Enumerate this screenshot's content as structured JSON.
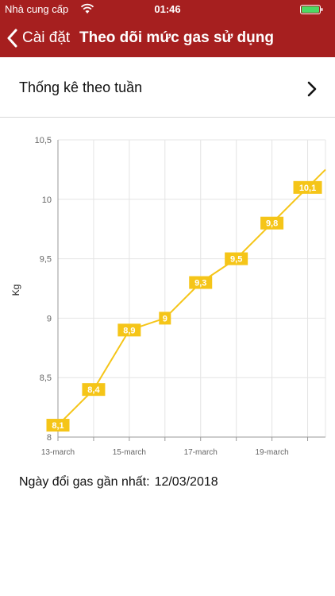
{
  "status_bar": {
    "carrier": "Nhà cung cấp",
    "time": "01:46",
    "wifi_icon": "wifi-icon",
    "battery_icon": "battery-icon"
  },
  "nav": {
    "back_label": "Cài đặt",
    "back_icon": "chevron-left-icon",
    "title": "Theo dõi mức gas sử dụng",
    "background": "#a61f1f"
  },
  "stats_row": {
    "label": "Thống kê theo tuần",
    "icon": "chevron-right-icon"
  },
  "chart_data": {
    "type": "line",
    "ylabel": "Kg",
    "xlabel": "",
    "ylim": [
      8,
      10.5
    ],
    "yticks": [
      "8",
      "8,5",
      "9",
      "9,5",
      "10",
      "10,5"
    ],
    "xticks": [
      "13-march",
      "15-march",
      "17-march",
      "19-march"
    ],
    "grid": true,
    "line_color": "#f5c518",
    "label_color": "#f5c518",
    "series": [
      {
        "points": [
          {
            "x": "13-march",
            "y": 8.1,
            "label": "8,1"
          },
          {
            "x": "14-march",
            "y": 8.4,
            "label": "8,4"
          },
          {
            "x": "15-march",
            "y": 8.9,
            "label": "8,9"
          },
          {
            "x": "16-march",
            "y": 9.0,
            "label": "9"
          },
          {
            "x": "17-march",
            "y": 9.3,
            "label": "9,3"
          },
          {
            "x": "18-march",
            "y": 9.5,
            "label": "9,5"
          },
          {
            "x": "19-march",
            "y": 9.8,
            "label": "9,8"
          },
          {
            "x": "20-march",
            "y": 10.1,
            "label": "10,1"
          }
        ]
      }
    ]
  },
  "info": {
    "label": "Ngày đổi gas gần nhất:",
    "value": "12/03/2018"
  }
}
